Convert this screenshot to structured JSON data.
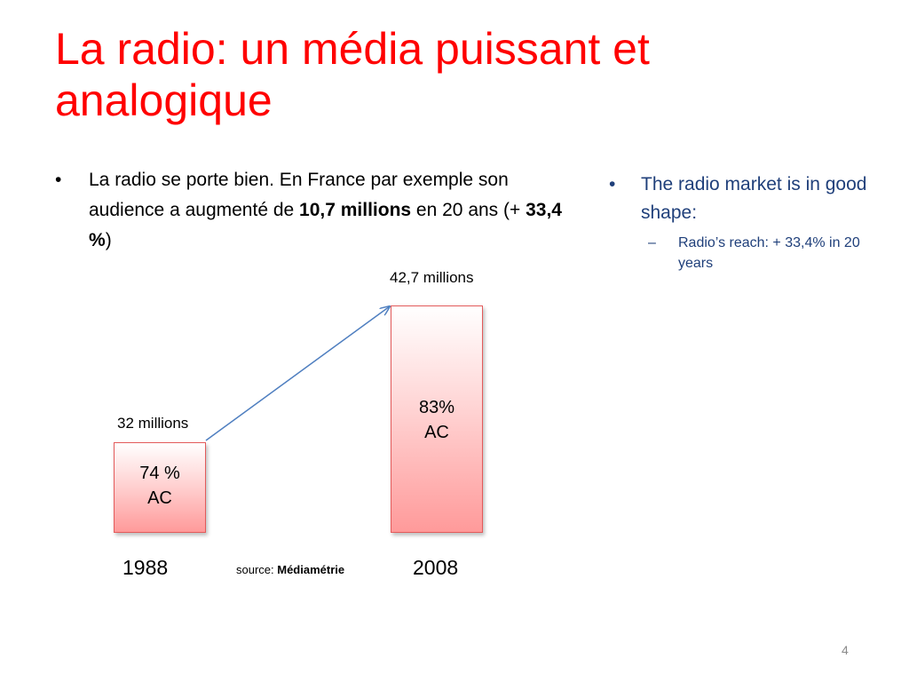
{
  "slide": {
    "title": "La radio: un média puissant et analogique",
    "page_number": "4"
  },
  "left_bullet": {
    "symbol": "•",
    "parts": {
      "t1": "La radio se porte bien. En France par exemple son audience a augmenté de ",
      "b1": "10,7 millions",
      "t2": " en 20 ans (+ ",
      "b2": "33,4 %",
      "t3": ")"
    }
  },
  "right_bullet": {
    "symbol": "•",
    "text": "The radio market is in good shape:",
    "sub": {
      "symbol": "–",
      "text": "Radio’s reach: + 33,4% in 20 years"
    }
  },
  "chart_data": {
    "type": "bar",
    "categories": [
      "1988",
      "2008"
    ],
    "values": [
      32,
      42.7
    ],
    "value_labels": [
      "32 millions",
      "42,7 millions"
    ],
    "inner_labels": [
      [
        "74 %",
        "AC"
      ],
      [
        "83%",
        "AC"
      ]
    ],
    "annotation": "arrow from 1988 bar to 2008 bar",
    "source_prefix": "source: ",
    "source_name": "Médiamétrie",
    "colors": {
      "bar_fill_light": "#ffffff",
      "bar_fill_dark": "#ff9a9a",
      "bar_border": "#e35a5a",
      "arrow": "#4f7fc0"
    }
  },
  "colors": {
    "title": "#ff0000",
    "right_text": "#1f3f7a",
    "page_number": "#8a8a8a"
  }
}
